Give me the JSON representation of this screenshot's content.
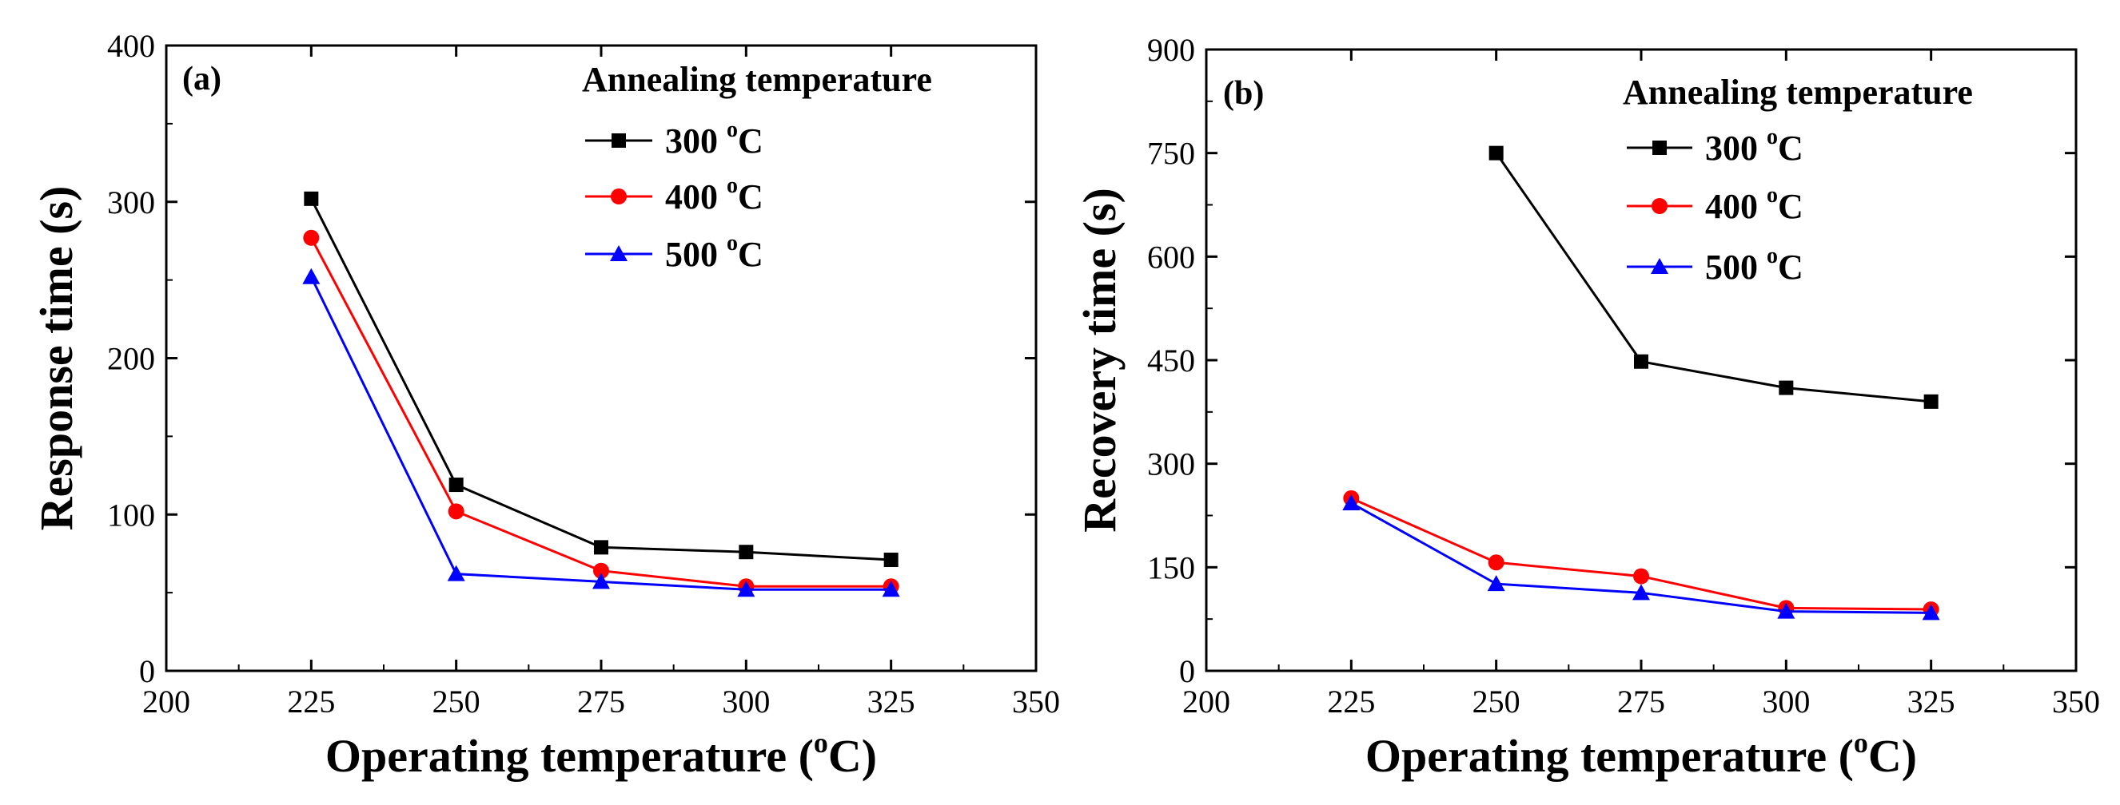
{
  "chart_data": [
    {
      "type": "line",
      "panel_label": "(a)",
      "xlabel_main": "Operating temperature (",
      "xlabel_unit_sup": "o",
      "xlabel_unit_end": "C)",
      "ylabel": "Response time (s)",
      "xlim": [
        200,
        350
      ],
      "ylim": [
        0,
        400
      ],
      "xticks": [
        200,
        225,
        250,
        275,
        300,
        325,
        350
      ],
      "yticks": [
        0,
        100,
        200,
        300,
        400
      ],
      "legend_title": "Annealing temperature",
      "x": [
        225,
        250,
        275,
        300,
        325
      ],
      "series": [
        {
          "name": "300 °C",
          "name_num": "300 ",
          "name_sup": "o",
          "name_unit": "C",
          "color": "#000000",
          "marker": "square",
          "values": [
            302,
            119,
            79,
            76,
            71
          ]
        },
        {
          "name": "400 °C",
          "name_num": "400 ",
          "name_sup": "o",
          "name_unit": "C",
          "color": "#ff0000",
          "marker": "circle",
          "values": [
            277,
            102,
            64,
            54,
            54
          ]
        },
        {
          "name": "500 °C",
          "name_num": "500 ",
          "name_sup": "o",
          "name_unit": "C",
          "color": "#0000ff",
          "marker": "triangle",
          "values": [
            252,
            62,
            57,
            52,
            52
          ]
        }
      ]
    },
    {
      "type": "line",
      "panel_label": "(b)",
      "xlabel_main": "Operating temperature (",
      "xlabel_unit_sup": "o",
      "xlabel_unit_end": "C)",
      "ylabel": "Recovery time (s)",
      "xlim": [
        200,
        350
      ],
      "ylim": [
        0,
        900
      ],
      "xticks": [
        200,
        225,
        250,
        275,
        300,
        325,
        350
      ],
      "yticks": [
        0,
        150,
        300,
        450,
        600,
        750,
        900
      ],
      "legend_title": "Annealing temperature",
      "x": [
        225,
        250,
        275,
        300,
        325
      ],
      "series": [
        {
          "name": "300 °C",
          "name_num": "300 ",
          "name_sup": "o",
          "name_unit": "C",
          "color": "#000000",
          "marker": "square",
          "values": [
            null,
            750,
            448,
            410,
            390
          ]
        },
        {
          "name": "400 °C",
          "name_num": "400 ",
          "name_sup": "o",
          "name_unit": "C",
          "color": "#ff0000",
          "marker": "circle",
          "values": [
            250,
            157,
            137,
            91,
            89
          ]
        },
        {
          "name": "500 °C",
          "name_num": "500 ",
          "name_sup": "o",
          "name_unit": "C",
          "color": "#0000ff",
          "marker": "triangle",
          "values": [
            243,
            126,
            113,
            86,
            84
          ]
        }
      ]
    }
  ]
}
